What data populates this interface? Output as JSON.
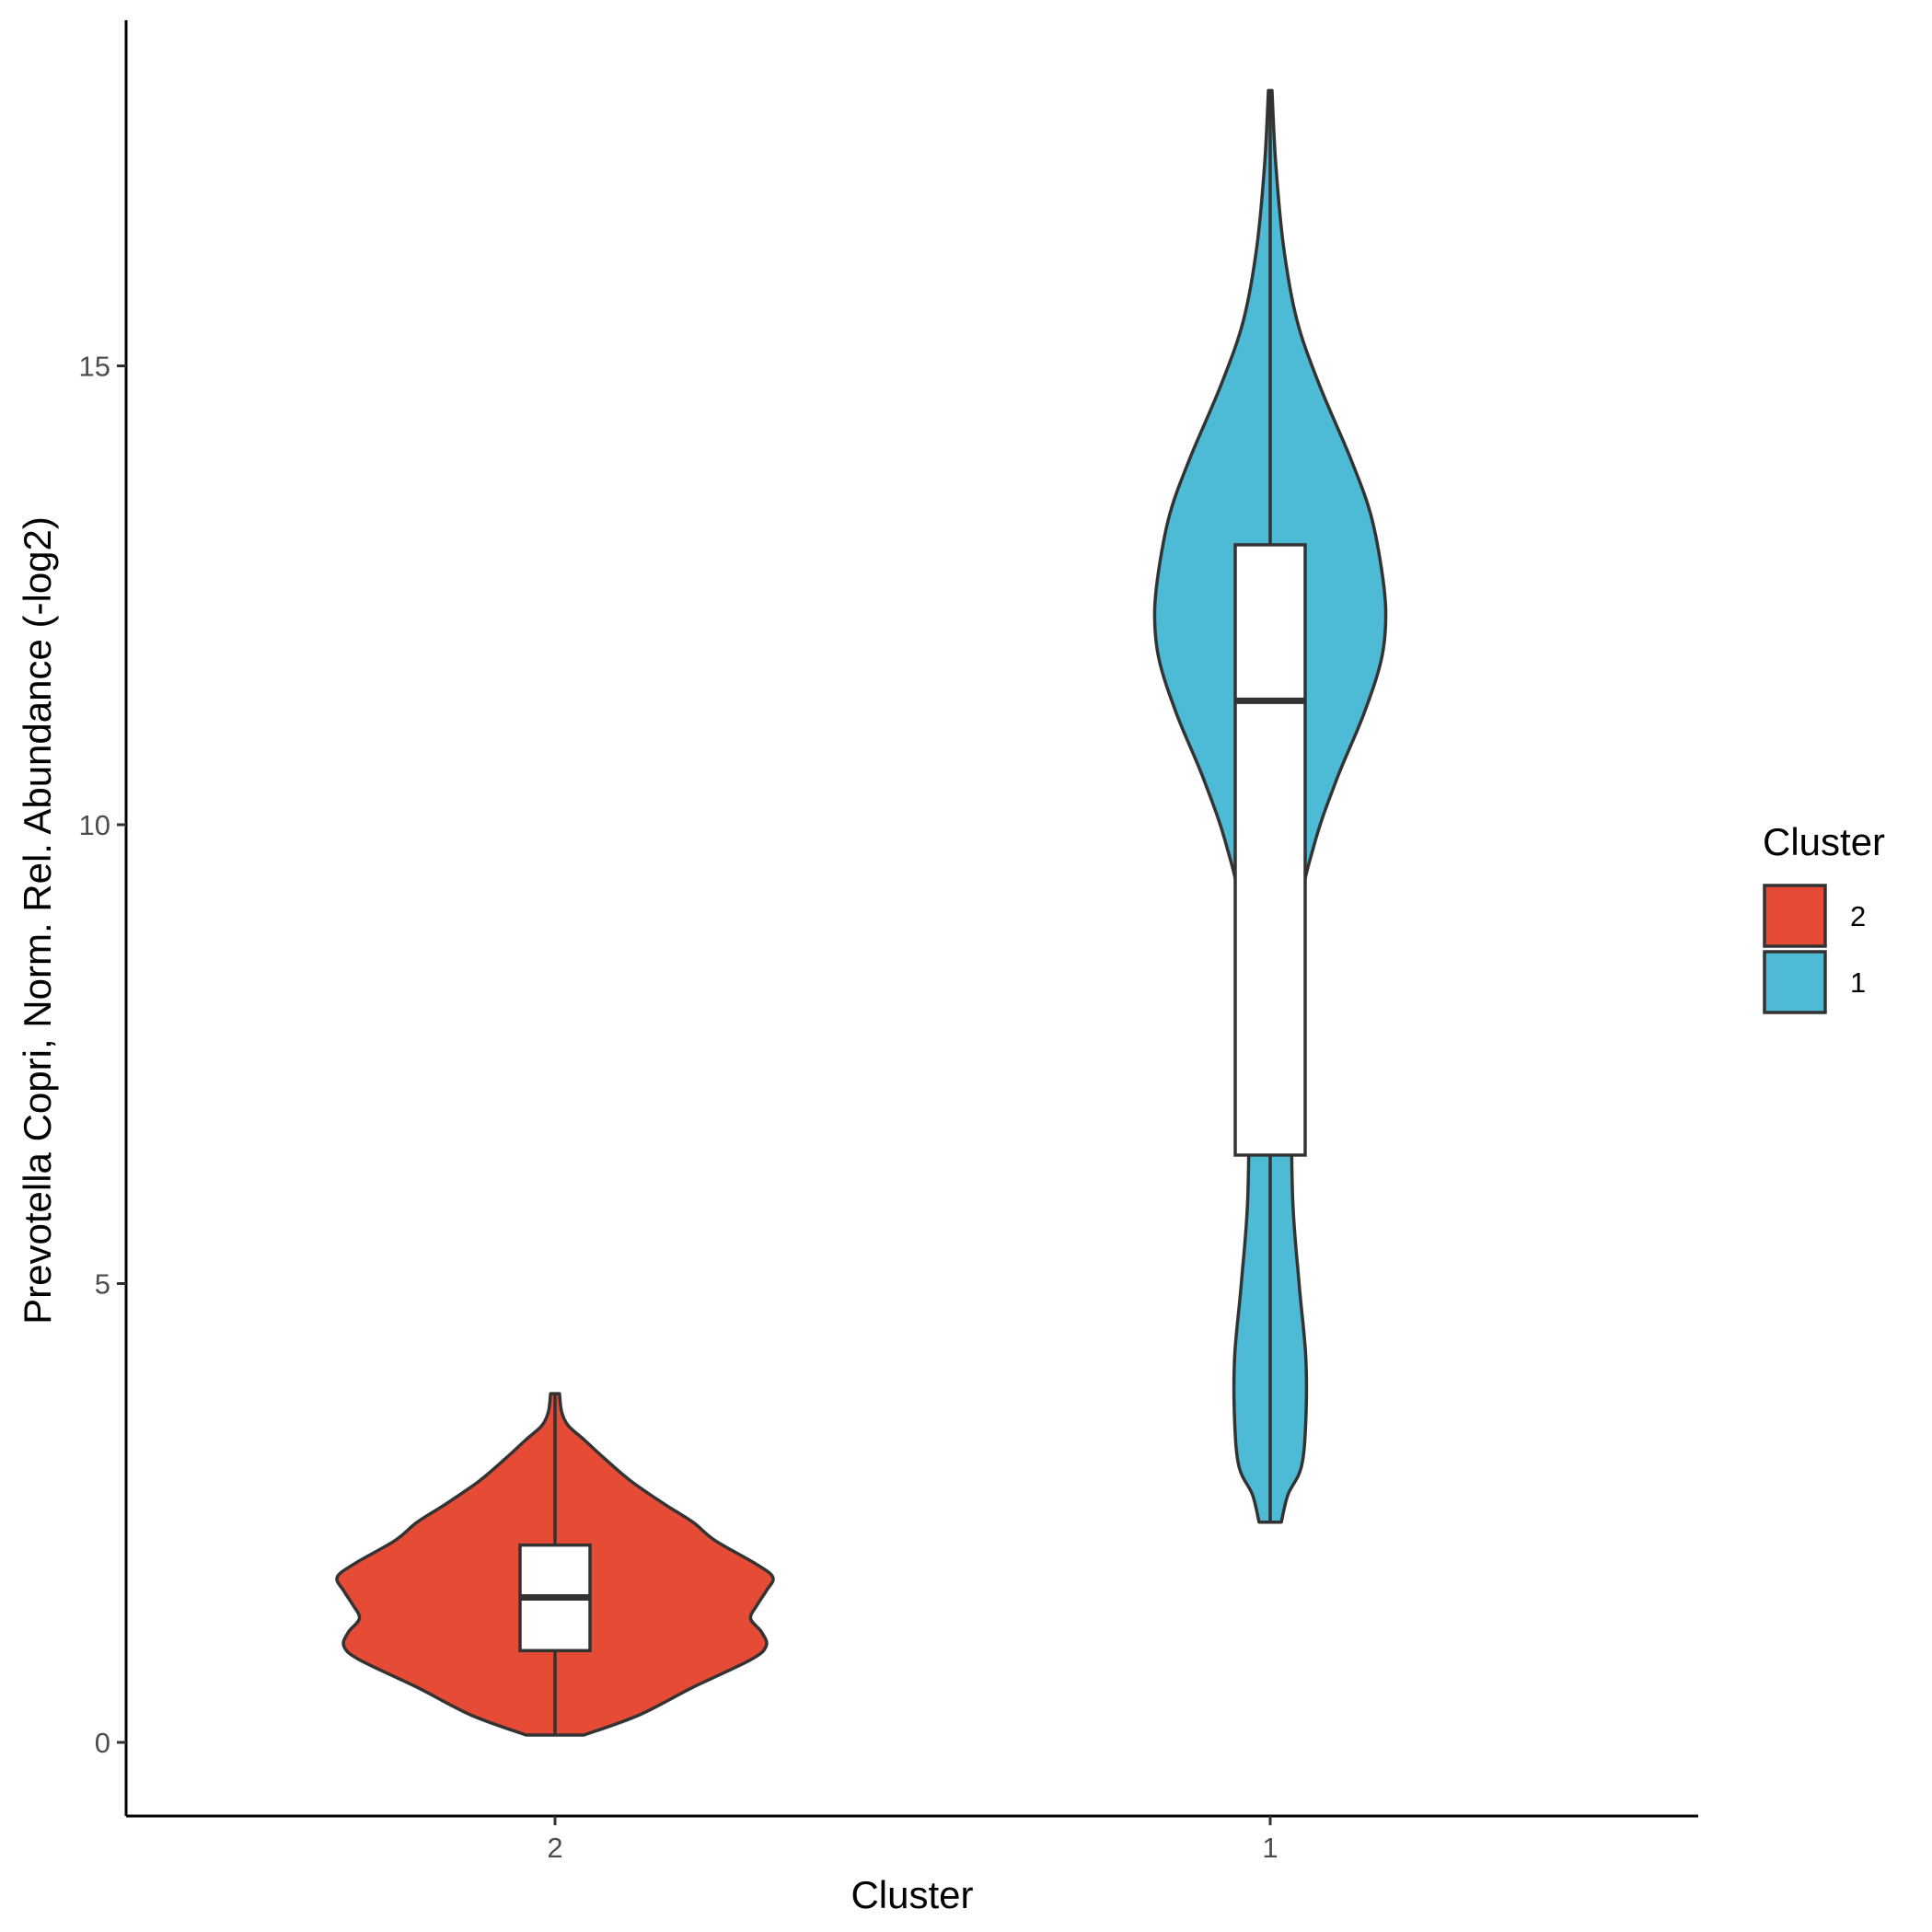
{
  "chart_data": {
    "type": "violin",
    "xlabel": "Cluster",
    "ylabel": "Prevotella Copri, Norm. Rel. Abundance (-log2)",
    "categories": [
      "2",
      "1"
    ],
    "ylim": [
      -0.9,
      18.3
    ],
    "yticks": [
      0,
      5,
      10,
      15
    ],
    "grid": false,
    "legend": {
      "title": "Cluster",
      "position": "right",
      "entries": [
        {
          "label": "2",
          "color": "#E64B35"
        },
        {
          "label": "1",
          "color": "#4DBBD5"
        }
      ]
    },
    "series": [
      {
        "category": "2",
        "color": "#E64B35",
        "box": {
          "whisker_low": 0.08,
          "q1": 1.0,
          "median": 1.58,
          "q3": 2.15,
          "whisker_high": 3.8
        },
        "density": [
          [
            0.08,
            0.13
          ],
          [
            0.3,
            0.38
          ],
          [
            0.6,
            0.62
          ],
          [
            0.9,
            0.88
          ],
          [
            1.05,
            0.95
          ],
          [
            1.2,
            0.93
          ],
          [
            1.35,
            0.88
          ],
          [
            1.5,
            0.91
          ],
          [
            1.65,
            0.95
          ],
          [
            1.8,
            0.98
          ],
          [
            1.95,
            0.9
          ],
          [
            2.2,
            0.72
          ],
          [
            2.4,
            0.62
          ],
          [
            2.6,
            0.49
          ],
          [
            2.85,
            0.34
          ],
          [
            3.1,
            0.22
          ],
          [
            3.3,
            0.13
          ],
          [
            3.45,
            0.06
          ],
          [
            3.6,
            0.03
          ],
          [
            3.8,
            0.02
          ]
        ]
      },
      {
        "category": "1",
        "color": "#4DBBD5",
        "box": {
          "whisker_low": 2.4,
          "q1": 6.4,
          "median": 11.35,
          "q3": 13.05,
          "whisker_high": 18.0
        },
        "density": [
          [
            2.4,
            0.05
          ],
          [
            2.7,
            0.08
          ],
          [
            3.0,
            0.14
          ],
          [
            3.5,
            0.16
          ],
          [
            4.2,
            0.16
          ],
          [
            5.0,
            0.13
          ],
          [
            6.0,
            0.1
          ],
          [
            7.5,
            0.1
          ],
          [
            9.0,
            0.13
          ],
          [
            9.8,
            0.2
          ],
          [
            10.5,
            0.3
          ],
          [
            11.2,
            0.42
          ],
          [
            11.8,
            0.5
          ],
          [
            12.3,
            0.52
          ],
          [
            12.8,
            0.5
          ],
          [
            13.4,
            0.45
          ],
          [
            14.0,
            0.36
          ],
          [
            14.8,
            0.22
          ],
          [
            15.5,
            0.12
          ],
          [
            16.3,
            0.06
          ],
          [
            17.2,
            0.025
          ],
          [
            18.0,
            0.008
          ]
        ]
      }
    ]
  }
}
